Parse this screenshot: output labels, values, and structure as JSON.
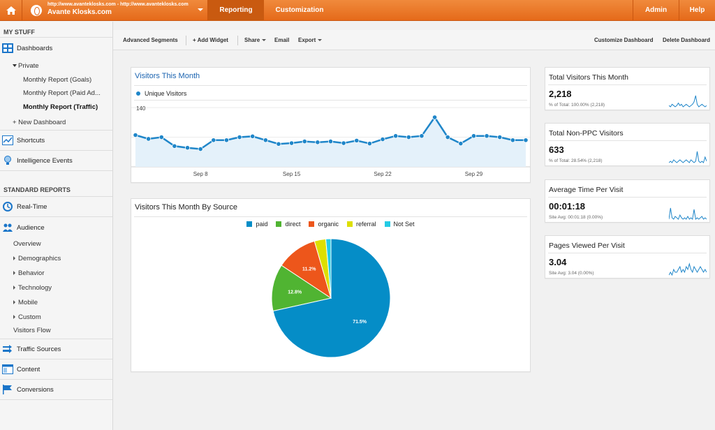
{
  "topbar": {
    "account_url": "http://www.avanteklosks.com - http://www.avanteklosks.com",
    "account_name": "Avante Klosks.com",
    "tabs": [
      {
        "label": "Reporting",
        "active": true
      },
      {
        "label": "Customization",
        "active": false
      }
    ],
    "admin_label": "Admin",
    "help_label": "Help"
  },
  "sidebar": {
    "my_stuff": "MY STUFF",
    "dashboards": "Dashboards",
    "private": "Private",
    "reports": [
      "Monthly Report (Goals)",
      "Monthly Report (Paid Ad...",
      "Monthly Report (Traffic)"
    ],
    "new_dashboard": "+ New Dashboard",
    "shortcuts": "Shortcuts",
    "intelligence": "Intelligence Events",
    "standard_reports": "STANDARD REPORTS",
    "realtime": "Real-Time",
    "audience": "Audience",
    "audience_items": [
      "Overview",
      "Demographics",
      "Behavior",
      "Technology",
      "Mobile",
      "Custom",
      "Visitors Flow"
    ],
    "traffic_sources": "Traffic Sources",
    "content": "Content",
    "conversions": "Conversions"
  },
  "toolbar": {
    "advanced_segments": "Advanced Segments",
    "add_widget": "+ Add Widget",
    "share": "Share",
    "email": "Email",
    "export": "Export",
    "customize": "Customize Dashboard",
    "delete": "Delete Dashboard"
  },
  "colors": {
    "brand_orange": "#e56a1a",
    "line_blue": "#1f86c9",
    "paid": "#058dc7",
    "direct": "#50b432",
    "organic": "#ed561b",
    "referral": "#dddf00",
    "not_set": "#24cbe5"
  },
  "chart_data": [
    {
      "type": "line",
      "title": "Visitors This Month",
      "series": [
        {
          "name": "Unique Visitors",
          "values": [
            75,
            66,
            70,
            49,
            45,
            42,
            63,
            63,
            70,
            72,
            63,
            54,
            56,
            60,
            58,
            60,
            56,
            62,
            55,
            65,
            73,
            70,
            73,
            117,
            70,
            55,
            73,
            73,
            70,
            63,
            63
          ]
        }
      ],
      "y_ticks": [
        70,
        140
      ],
      "x_ticks": [
        "Sep 8",
        "Sep 15",
        "Sep 22",
        "Sep 29"
      ],
      "ylim": [
        0,
        150
      ],
      "area_fill": true
    },
    {
      "type": "pie",
      "title": "Visitors This Month By Source",
      "legend_position": "top",
      "labels": [
        "paid",
        "direct",
        "organic",
        "referral",
        "Not Set"
      ],
      "values": [
        71.5,
        12.8,
        11.2,
        3.1,
        1.4
      ],
      "data_labels": [
        "71.5%",
        "12.8%",
        "11.2%",
        "",
        ""
      ]
    }
  ],
  "stats": [
    {
      "title": "Total Visitors This Month",
      "value": "2,218",
      "sub": "% of Total: 100.00% (2,218)",
      "spark": [
        10,
        9,
        11,
        10,
        9,
        10,
        12,
        10,
        11,
        9,
        10,
        11,
        10,
        9,
        10,
        11,
        13,
        18,
        11,
        9,
        10,
        11,
        10,
        9,
        10
      ]
    },
    {
      "title": "Total Non-PPC Visitors",
      "value": "633",
      "sub": "% of Total: 28.54% (2,218)",
      "spark": [
        8,
        9,
        8,
        10,
        9,
        8,
        9,
        10,
        9,
        8,
        9,
        10,
        9,
        8,
        10,
        9,
        8,
        9,
        16,
        9,
        8,
        9,
        8,
        12,
        9
      ]
    },
    {
      "title": "Average Time Per Visit",
      "value": "00:01:18",
      "sub": "Site Avg: 00:01:18 (0.00%)",
      "spark": [
        6,
        14,
        7,
        6,
        8,
        7,
        6,
        9,
        7,
        6,
        7,
        6,
        8,
        6,
        7,
        6,
        13,
        6,
        7,
        6,
        7,
        8,
        6,
        7,
        6
      ]
    },
    {
      "title": "Pages Viewed Per Visit",
      "value": "3.04",
      "sub": "Site Avg: 3.04 (0.00%)",
      "spark": [
        8,
        9,
        8,
        10,
        9,
        9,
        10,
        11,
        9,
        10,
        9,
        11,
        10,
        12,
        10,
        9,
        11,
        10,
        9,
        10,
        11,
        10,
        9,
        10,
        9
      ]
    }
  ]
}
